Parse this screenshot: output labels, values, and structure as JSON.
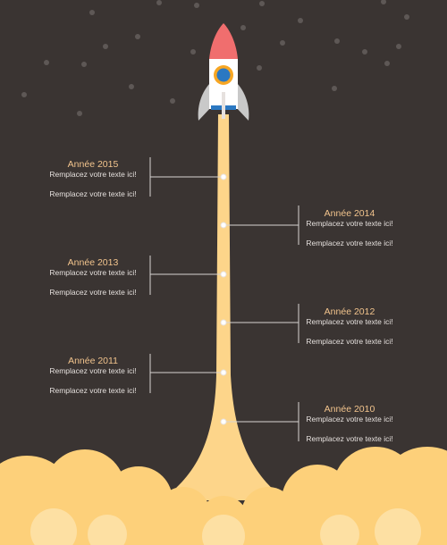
{
  "timeline": {
    "entries": [
      {
        "year": "Année 2015",
        "line1": "Remplacez votre texte ici!",
        "line2": "Remplacez votre texte ici!",
        "side": "left"
      },
      {
        "year": "Année 2014",
        "line1": "Remplacez votre texte ici!",
        "line2": "Remplacez votre texte ici!",
        "side": "right"
      },
      {
        "year": "Année 2013",
        "line1": "Remplacez votre texte ici!",
        "line2": "Remplacez votre texte ici!",
        "side": "left"
      },
      {
        "year": "Année 2012",
        "line1": "Remplacez votre texte ici!",
        "line2": "Remplacez votre texte ici!",
        "side": "right"
      },
      {
        "year": "Année 2011",
        "line1": "Remplacez votre texte ici!",
        "line2": "Remplacez votre texte ici!",
        "side": "left"
      },
      {
        "year": "Année 2010",
        "line1": "Remplacez votre texte ici!",
        "line2": "Remplacez votre texte ici!",
        "side": "right"
      }
    ]
  },
  "colors": {
    "background": "#3a3432",
    "flame": "#fdd58a",
    "cloud": "#fdd07a",
    "cloud_light": "#fde0a3",
    "rocket_nose": "#f06e6e",
    "rocket_body": "#ffffff",
    "rocket_fin": "#c9c9c9",
    "window_ring": "#f7a623",
    "window_glass": "#2b78c2",
    "year_text": "#f2c48d",
    "body_text": "#e4dfdc",
    "connector": "#d8d4d2",
    "star": "#5e5856"
  }
}
